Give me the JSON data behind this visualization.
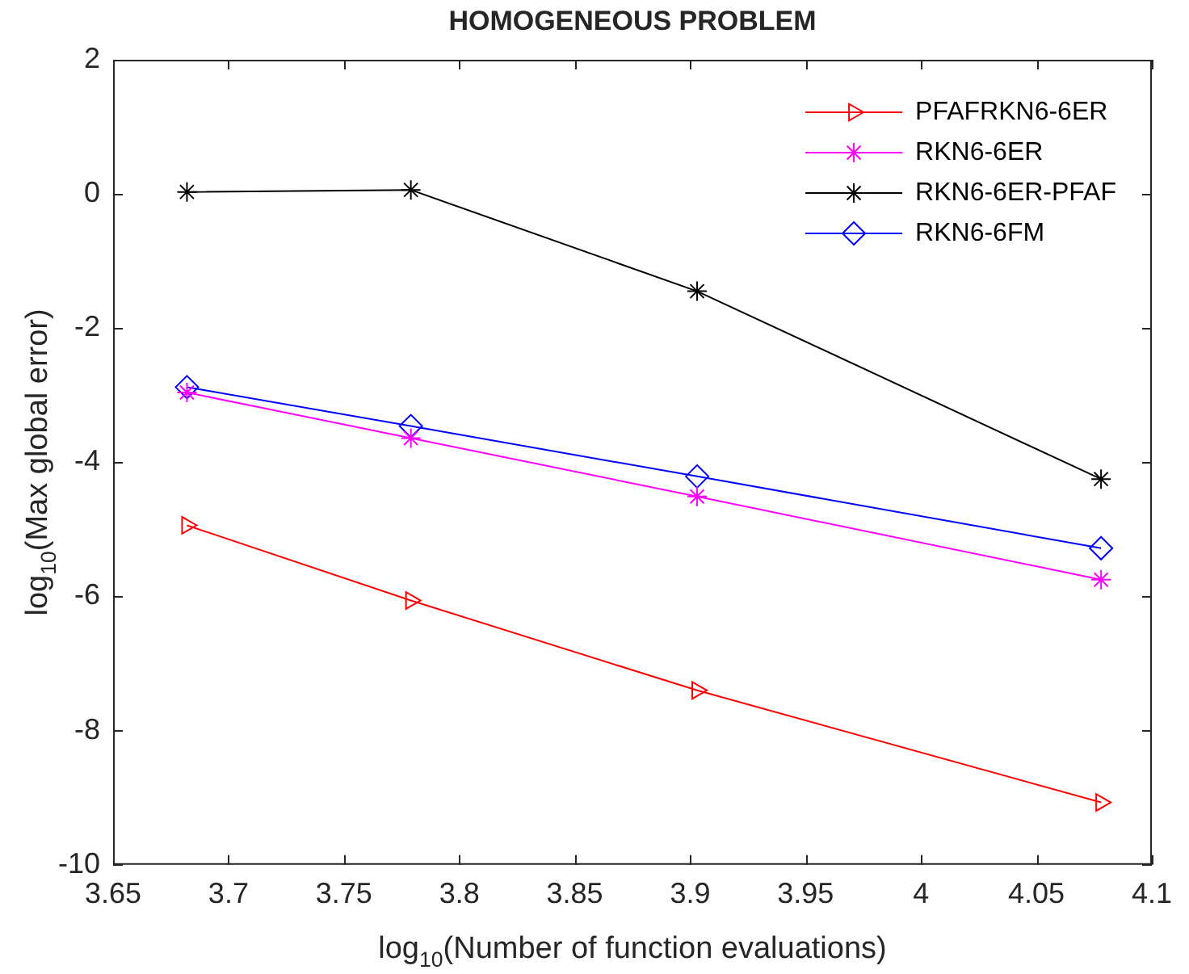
{
  "chart_data": {
    "type": "line",
    "title": "HOMOGENEOUS PROBLEM",
    "xlabel": "log$_{10}$(Number of function evaluations)",
    "ylabel": "log$_{10}$(Max global error)",
    "x": [
      3.682,
      3.779,
      3.903,
      4.078
    ],
    "series": [
      {
        "name": "PFAFRKN6-6ER",
        "color": "#ff0000",
        "marker": "triangle",
        "values": [
          -4.94,
          -6.06,
          -7.4,
          -9.07
        ]
      },
      {
        "name": "RKN6-6ER",
        "color": "#ff00ff",
        "marker": "cross",
        "values": [
          -2.96,
          -3.64,
          -4.51,
          -5.75
        ]
      },
      {
        "name": "RKN6-6ER-PFAF",
        "color": "#000000",
        "marker": "cross",
        "values": [
          0.03,
          0.06,
          -1.45,
          -4.25
        ]
      },
      {
        "name": "RKN6-6FM",
        "color": "#0000ff",
        "marker": "diamond",
        "values": [
          -2.88,
          -3.46,
          -4.21,
          -5.28
        ]
      }
    ],
    "xlim": [
      3.65,
      4.1
    ],
    "xticks": [
      3.65,
      3.7,
      3.75,
      3.8,
      3.85,
      3.9,
      3.95,
      4,
      4.05,
      4.1
    ],
    "ylim": [
      -10,
      2
    ],
    "yticks": [
      -10,
      -8,
      -6,
      -4,
      -2,
      0,
      2
    ],
    "legend": "top right",
    "grid": false
  }
}
